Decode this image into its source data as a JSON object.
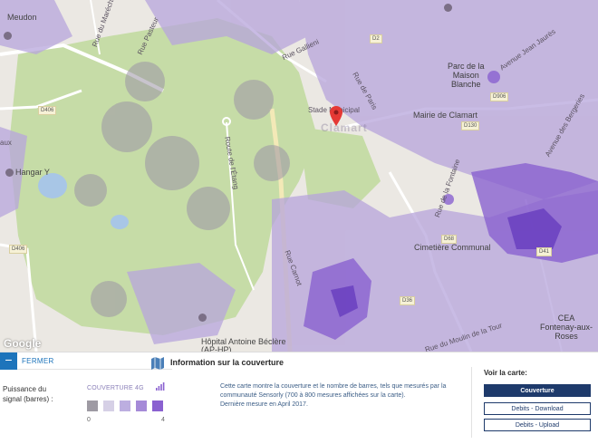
{
  "map": {
    "labels": {
      "meudon": "Meudon",
      "hangar": "Hangar Y",
      "stade": "Stade Municipal",
      "clamart_ghost": "Clamart",
      "mairie": "Mairie de Clamart",
      "parc": "Parc de la\nMaison\nBlanche",
      "cimetiere": "Cimetière Communal",
      "hopital": "Hôpital Antoine Béclère\n(AP-HP)",
      "cea": "CEA\nFontenay-aux-Roses",
      "aux": "aux",
      "rue_marechal": "Rue du Maréchal",
      "rue_pasteur": "Rue Pasteur",
      "rue_gallieni": "Rue Gallieni",
      "rue_paris": "Rue de Paris",
      "rue_carnot": "Rue Carnot",
      "rue_moulin": "Rue du Moulin de la Tour",
      "rue_fontaine": "Rue de la Fontaine",
      "avenue_jean_jaures": "Avenue Jean Jaurès",
      "route_stael": "Route de l'Étang",
      "avenue_bergeries": "Avenue des Bergeries"
    },
    "road_badges": {
      "d406": "D406",
      "d2": "D2",
      "d906": "D906",
      "d130": "D130",
      "d68": "D68",
      "d41": "D41",
      "d36": "D36",
      "d406b": "D406"
    },
    "attribution": "Google"
  },
  "panel": {
    "close_label": "FERMER",
    "legend": {
      "title": "Puissance du signal (barres) :",
      "coverage_label": "COUVERTURE 4G",
      "scale_min": "0",
      "scale_max": "4",
      "swatch_colors": [
        "#9e9aa3",
        "#d6d0e6",
        "#bcaee0",
        "#a58ad8",
        "#8a61d0"
      ]
    },
    "info": {
      "title": "Information sur la couverture",
      "text": "Cette carte montre la couverture et le nombre de barres, tels que mesurés par la communauté Sensorly (700 à 800 mesures affichées sur la carte).",
      "last_measure": "Dernière mesure en April 2017."
    },
    "voir": {
      "title": "Voir la carte:",
      "buttons": {
        "coverage": "Couverture",
        "download": "Debits - Download",
        "upload": "Debits - Upload"
      }
    }
  },
  "colors": {
    "accent_blue": "#1d74bb",
    "navy": "#1e3a6b",
    "coverage_purple": "#8a61d0"
  }
}
